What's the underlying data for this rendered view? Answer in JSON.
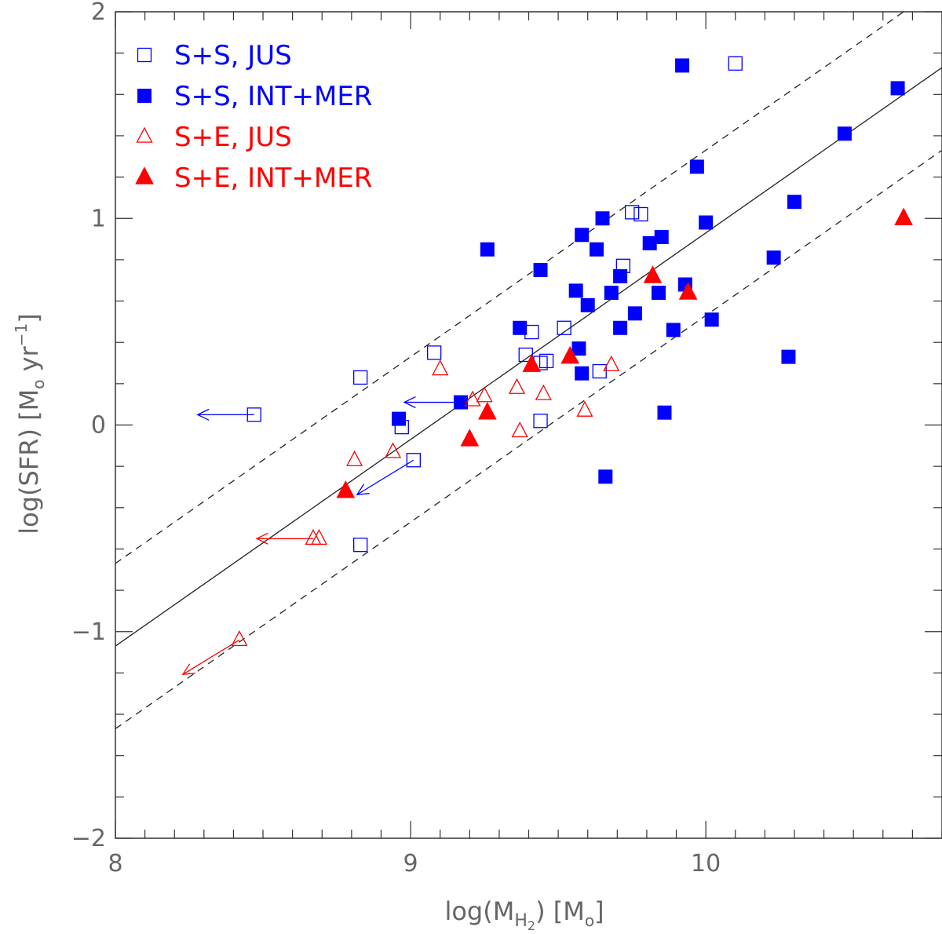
{
  "chart_data": {
    "type": "scatter",
    "xlabel": {
      "main": "log(M",
      "sub": "H",
      "subsub": "2",
      "tail": ") [M",
      "sol": "o",
      "end": "]"
    },
    "ylabel": {
      "main": "log(SFR) [M",
      "sol": "o",
      "unit": " yr",
      "exp": "−1",
      "end": "]"
    },
    "xlim": [
      8,
      10.8
    ],
    "ylim": [
      -2,
      2
    ],
    "x_ticks": [
      {
        "value": 8,
        "label": "8"
      },
      {
        "value": 9,
        "label": "9"
      },
      {
        "value": 10,
        "label": "10"
      }
    ],
    "y_ticks": [
      {
        "value": -2,
        "label": "−2"
      },
      {
        "value": -1,
        "label": "−1"
      },
      {
        "value": 0,
        "label": "0"
      },
      {
        "value": 1,
        "label": "1"
      },
      {
        "value": 2,
        "label": "2"
      }
    ],
    "colors": {
      "blue": "#0000ff",
      "red": "#ff0000",
      "axis": "#333333",
      "text": "#666666"
    },
    "legend": {
      "position": "top-left",
      "entries": [
        {
          "label": "S+S, JUS",
          "marker": "square-open",
          "color": "#0000ff"
        },
        {
          "label": "S+S, INT+MER",
          "marker": "square-filled",
          "color": "#0000ff"
        },
        {
          "label": "S+E, JUS",
          "marker": "triangle-open",
          "color": "#ff0000"
        },
        {
          "label": "S+E, INT+MER",
          "marker": "triangle-filled",
          "color": "#ff0000"
        }
      ]
    },
    "lines": [
      {
        "name": "fit",
        "style": "solid",
        "slope": 1.0,
        "intercept": -9.07
      },
      {
        "name": "upper-bound",
        "style": "dashed",
        "slope": 1.0,
        "intercept": -8.67
      },
      {
        "name": "lower-bound",
        "style": "dashed",
        "slope": 1.0,
        "intercept": -9.47
      }
    ],
    "series": [
      {
        "name": "S+S, JUS",
        "marker": "square-open",
        "color": "#0000ff",
        "points": [
          {
            "x": 8.47,
            "y": 0.05,
            "upper_limit": "left"
          },
          {
            "x": 8.83,
            "y": 0.23
          },
          {
            "x": 9.08,
            "y": 0.35
          },
          {
            "x": 8.97,
            "y": -0.01
          },
          {
            "x": 9.01,
            "y": -0.17,
            "upper_limit": "left-down"
          },
          {
            "x": 8.83,
            "y": -0.58
          },
          {
            "x": 9.39,
            "y": 0.34
          },
          {
            "x": 9.41,
            "y": 0.45
          },
          {
            "x": 9.44,
            "y": 0.3
          },
          {
            "x": 9.46,
            "y": 0.31
          },
          {
            "x": 9.44,
            "y": 0.02
          },
          {
            "x": 9.52,
            "y": 0.47
          },
          {
            "x": 9.64,
            "y": 0.26
          },
          {
            "x": 9.72,
            "y": 0.77
          },
          {
            "x": 9.75,
            "y": 1.03
          },
          {
            "x": 9.78,
            "y": 1.02
          },
          {
            "x": 10.1,
            "y": 1.75
          }
        ]
      },
      {
        "name": "S+S, INT+MER",
        "marker": "square-filled",
        "color": "#0000ff",
        "points": [
          {
            "x": 8.96,
            "y": 0.03
          },
          {
            "x": 9.17,
            "y": 0.11,
            "upper_limit": "left"
          },
          {
            "x": 9.26,
            "y": 0.85
          },
          {
            "x": 9.37,
            "y": 0.47
          },
          {
            "x": 9.44,
            "y": 0.75
          },
          {
            "x": 9.56,
            "y": 0.65
          },
          {
            "x": 9.57,
            "y": 0.37
          },
          {
            "x": 9.58,
            "y": 0.92
          },
          {
            "x": 9.58,
            "y": 0.25
          },
          {
            "x": 9.6,
            "y": 0.58
          },
          {
            "x": 9.63,
            "y": 0.85
          },
          {
            "x": 9.65,
            "y": 1.0
          },
          {
            "x": 9.66,
            "y": -0.25
          },
          {
            "x": 9.68,
            "y": 0.64
          },
          {
            "x": 9.71,
            "y": 0.72
          },
          {
            "x": 9.71,
            "y": 0.47
          },
          {
            "x": 9.76,
            "y": 0.54
          },
          {
            "x": 9.81,
            "y": 0.88
          },
          {
            "x": 9.84,
            "y": 0.64
          },
          {
            "x": 9.85,
            "y": 0.91
          },
          {
            "x": 9.86,
            "y": 0.06
          },
          {
            "x": 9.89,
            "y": 0.46
          },
          {
            "x": 9.92,
            "y": 1.74
          },
          {
            "x": 9.93,
            "y": 0.68
          },
          {
            "x": 9.97,
            "y": 1.25
          },
          {
            "x": 10.0,
            "y": 0.98
          },
          {
            "x": 10.02,
            "y": 0.51
          },
          {
            "x": 10.23,
            "y": 0.81
          },
          {
            "x": 10.28,
            "y": 0.33
          },
          {
            "x": 10.3,
            "y": 1.08
          },
          {
            "x": 10.47,
            "y": 1.41
          },
          {
            "x": 10.65,
            "y": 1.63
          }
        ]
      },
      {
        "name": "S+E, JUS",
        "marker": "triangle-open",
        "color": "#ff0000",
        "points": [
          {
            "x": 8.42,
            "y": -1.04,
            "upper_limit": "left-down"
          },
          {
            "x": 8.67,
            "y": -0.55,
            "upper_limit": "left"
          },
          {
            "x": 8.69,
            "y": -0.55
          },
          {
            "x": 8.81,
            "y": -0.17
          },
          {
            "x": 8.94,
            "y": -0.13
          },
          {
            "x": 9.1,
            "y": 0.27
          },
          {
            "x": 9.21,
            "y": 0.12
          },
          {
            "x": 9.25,
            "y": 0.14
          },
          {
            "x": 9.36,
            "y": 0.18
          },
          {
            "x": 9.37,
            "y": -0.03
          },
          {
            "x": 9.45,
            "y": 0.15
          },
          {
            "x": 9.59,
            "y": 0.07
          },
          {
            "x": 9.68,
            "y": 0.29
          }
        ]
      },
      {
        "name": "S+E, INT+MER",
        "marker": "triangle-filled",
        "color": "#ff0000",
        "points": [
          {
            "x": 8.78,
            "y": -0.32
          },
          {
            "x": 9.2,
            "y": -0.07
          },
          {
            "x": 9.26,
            "y": 0.06
          },
          {
            "x": 9.41,
            "y": 0.29
          },
          {
            "x": 9.54,
            "y": 0.33
          },
          {
            "x": 9.82,
            "y": 0.72
          },
          {
            "x": 9.94,
            "y": 0.64
          },
          {
            "x": 10.67,
            "y": 1.0
          }
        ]
      }
    ]
  }
}
